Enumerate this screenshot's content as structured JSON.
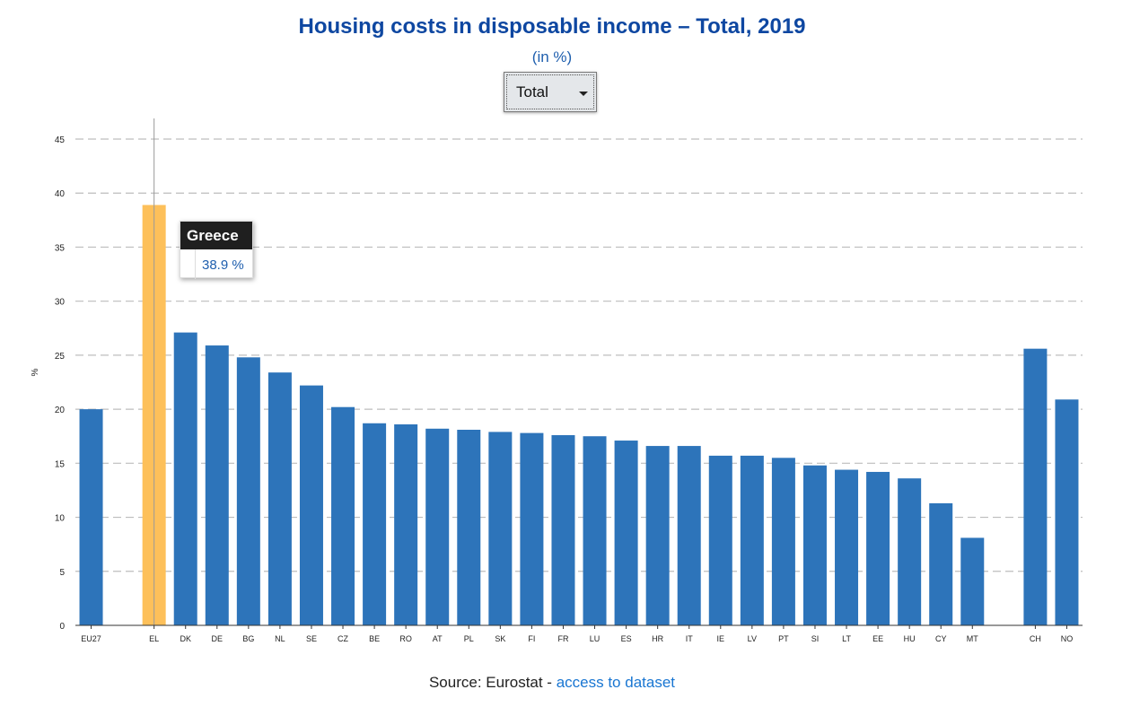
{
  "header": {
    "title": "Housing costs in disposable income – Total, 2019",
    "subtitle": "(in %)"
  },
  "filter": {
    "selected": "Total"
  },
  "tooltip": {
    "country": "Greece",
    "value": "38.9 %"
  },
  "source": {
    "prefix": "Source: Eurostat - ",
    "link": "access to dataset"
  },
  "colors": {
    "bar": "#2d74ba",
    "highlight": "#fdc05a",
    "title": "#0e47a1"
  },
  "chart_data": {
    "type": "bar",
    "ylabel": "%",
    "ylim": [
      0,
      45
    ],
    "yticks": [
      0,
      5,
      10,
      15,
      20,
      25,
      30,
      35,
      40,
      45
    ],
    "grid": true,
    "highlighted": "EL",
    "categories": [
      "EU27",
      "",
      "EL",
      "DK",
      "DE",
      "BG",
      "NL",
      "SE",
      "CZ",
      "BE",
      "RO",
      "AT",
      "PL",
      "SK",
      "FI",
      "FR",
      "LU",
      "ES",
      "HR",
      "IT",
      "IE",
      "LV",
      "PT",
      "SI",
      "LT",
      "EE",
      "HU",
      "CY",
      "MT",
      "",
      "CH",
      "NO"
    ],
    "values": [
      20.0,
      null,
      38.9,
      27.1,
      25.9,
      24.8,
      23.4,
      22.2,
      20.2,
      18.7,
      18.6,
      18.2,
      18.1,
      17.9,
      17.8,
      17.6,
      17.5,
      17.1,
      16.6,
      16.6,
      15.7,
      15.7,
      15.5,
      14.8,
      14.4,
      14.2,
      13.6,
      11.3,
      8.1,
      null,
      25.6,
      20.9
    ]
  }
}
